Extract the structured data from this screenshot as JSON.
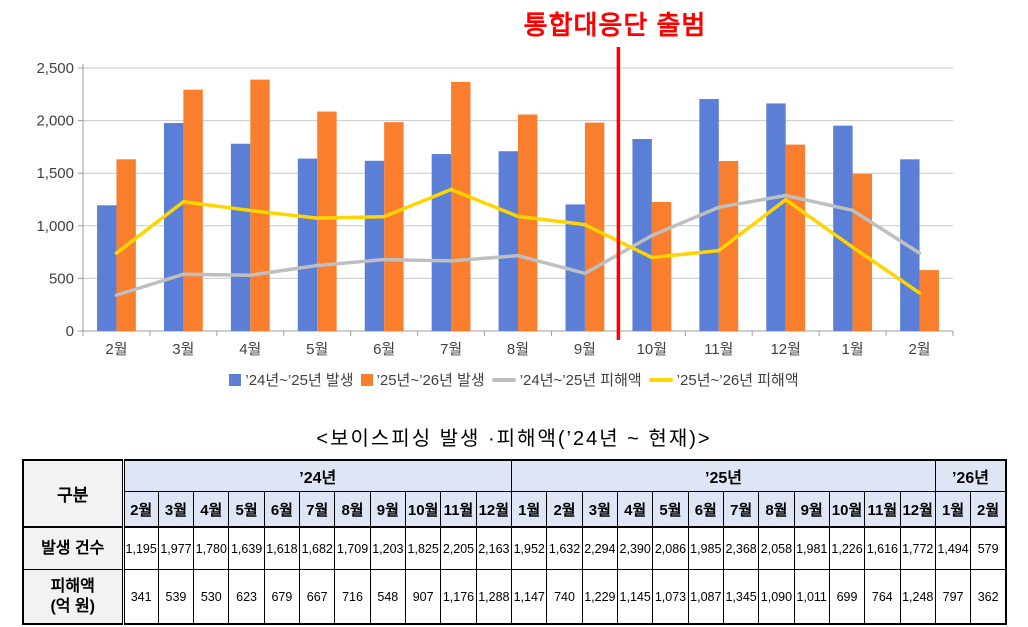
{
  "chart_data": {
    "type": "combo",
    "title": "",
    "categories": [
      "2월",
      "3월",
      "4월",
      "5월",
      "6월",
      "7월",
      "8월",
      "9월",
      "10월",
      "11월",
      "12월",
      "1월",
      "2월"
    ],
    "series": [
      {
        "name": "’24년~’25년 발생",
        "type": "bar",
        "color": "#5b7fd6",
        "values": [
          1195,
          1977,
          1780,
          1639,
          1618,
          1682,
          1709,
          1203,
          1825,
          2205,
          2163,
          1952,
          1632
        ]
      },
      {
        "name": "’25년~’26년 발생",
        "type": "bar",
        "color": "#f97e2e",
        "values": [
          1632,
          2294,
          2390,
          2086,
          1985,
          2368,
          2058,
          1981,
          1226,
          1616,
          1772,
          1494,
          579
        ]
      },
      {
        "name": "’24년~’25년 피해액",
        "type": "line",
        "color": "#bfbfbf",
        "values": [
          341,
          539,
          530,
          623,
          679,
          667,
          716,
          548,
          907,
          1176,
          1288,
          1147,
          740
        ]
      },
      {
        "name": "’25년~’26년 피해액",
        "type": "line",
        "color": "#ffd500",
        "values": [
          740,
          1229,
          1145,
          1073,
          1087,
          1345,
          1090,
          1011,
          699,
          764,
          1248,
          797,
          362
        ]
      }
    ],
    "ylim": [
      0,
      2500
    ],
    "ytick_step": 500,
    "grid": true,
    "legend_position": "bottom",
    "annotation": {
      "label": "통합대응단 출범",
      "color": "#ff0000",
      "before_category": "10월"
    }
  },
  "table": {
    "title": "<보이스피싱  발생 ·피해액(’24년 ~ 현재)>",
    "corner_label": "구분",
    "year_groups": [
      {
        "label": "’24년",
        "months": [
          "2월",
          "3월",
          "4월",
          "5월",
          "6월",
          "7월",
          "8월",
          "9월",
          "10월",
          "11월",
          "12월"
        ]
      },
      {
        "label": "’25년",
        "months": [
          "1월",
          "2월",
          "3월",
          "4월",
          "5월",
          "6월",
          "7월",
          "8월",
          "9월",
          "10월",
          "11월",
          "12월"
        ]
      },
      {
        "label": "’26년",
        "months": [
          "1월",
          "2월"
        ]
      }
    ],
    "rows": [
      {
        "label_lines": [
          "발생 건수"
        ],
        "values": [
          "1,195",
          "1,977",
          "1,780",
          "1,639",
          "1,618",
          "1,682",
          "1,709",
          "1,203",
          "1,825",
          "2,205",
          "2,163",
          "1,952",
          "1,632",
          "2,294",
          "2,390",
          "2,086",
          "1,985",
          "2,368",
          "2,058",
          "1,981",
          "1,226",
          "1,616",
          "1,772",
          "1,494",
          "579"
        ]
      },
      {
        "label_lines": [
          "피해액",
          "(억 원)"
        ],
        "values": [
          "341",
          "539",
          "530",
          "623",
          "679",
          "667",
          "716",
          "548",
          "907",
          "1,176",
          "1,288",
          "1,147",
          "740",
          "1,229",
          "1,145",
          "1,073",
          "1,087",
          "1,345",
          "1,090",
          "1,011",
          "699",
          "764",
          "1,248",
          "797",
          "362"
        ]
      }
    ]
  },
  "colors": {
    "grid": "#c9c9c9",
    "axis": "#9e9e9e",
    "tick_text": "#404040",
    "table_header_bg": "#dee5f4",
    "table_label_bg": "#f2f2f2",
    "annotation_red": "#ff0000"
  }
}
